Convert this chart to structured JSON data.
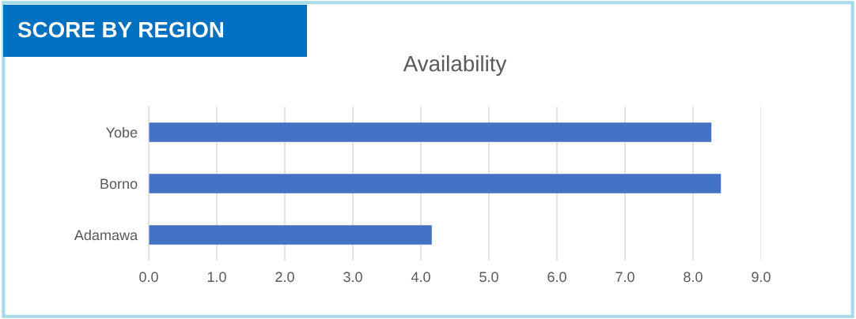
{
  "chart_data": {
    "type": "bar",
    "orientation": "horizontal",
    "title": "SCORE BY REGION",
    "subtitle": "Availability",
    "categories": [
      "Yobe",
      "Borno",
      "Adamawa"
    ],
    "values": [
      8.27,
      8.41,
      4.16
    ],
    "color": "#4472c4",
    "xlim": [
      0,
      9
    ],
    "xticks": [
      {
        "value": 0,
        "label": "0.0"
      },
      {
        "value": 1,
        "label": "1.0"
      },
      {
        "value": 2,
        "label": "2.0"
      },
      {
        "value": 3,
        "label": "3.0"
      },
      {
        "value": 4,
        "label": "4.0"
      },
      {
        "value": 5,
        "label": "5.0"
      },
      {
        "value": 6,
        "label": "6.0"
      },
      {
        "value": 7,
        "label": "7.0"
      },
      {
        "value": 8,
        "label": "8.0"
      },
      {
        "value": 9,
        "label": "9.0"
      }
    ],
    "grid": "x"
  }
}
